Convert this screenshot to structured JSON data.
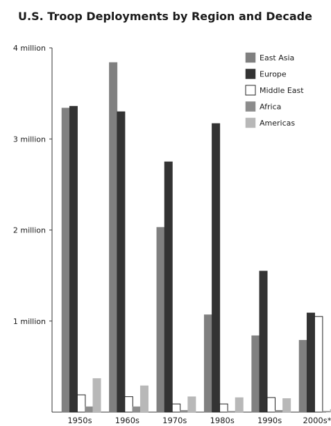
{
  "chart_data": {
    "type": "bar",
    "title": "U.S. Troop Deployments by Region and Decade",
    "xlabel": "",
    "ylabel": "",
    "categories": [
      "1950s",
      "1960s",
      "1970s",
      "1980s",
      "1990s",
      "2000s*"
    ],
    "ylim": [
      0,
      4000000
    ],
    "yticks": [
      {
        "value": 1000000,
        "label": "1 million"
      },
      {
        "value": 2000000,
        "label": "2 million"
      },
      {
        "value": 3000000,
        "label": "3 million"
      },
      {
        "value": 4000000,
        "label": "4 million"
      }
    ],
    "grid": false,
    "legend_position": "top-right",
    "series": [
      {
        "name": "East Asia",
        "color": "#808080",
        "stroke": "#808080",
        "values": [
          3340000,
          3840000,
          2030000,
          1070000,
          840000,
          790000
        ]
      },
      {
        "name": "Europe",
        "color": "#333333",
        "stroke": "#333333",
        "values": [
          3360000,
          3300000,
          2750000,
          3170000,
          1550000,
          1090000
        ]
      },
      {
        "name": "Middle East",
        "color": "#ffffff",
        "stroke": "#222222",
        "values": [
          190000,
          170000,
          90000,
          90000,
          160000,
          1050000
        ]
      },
      {
        "name": "Africa",
        "color": "#8c8c8c",
        "stroke": "#8c8c8c",
        "values": [
          60000,
          60000,
          20000,
          10000,
          20000,
          10000
        ]
      },
      {
        "name": "Americas",
        "color": "#b8b8b8",
        "stroke": "#b8b8b8",
        "values": [
          370000,
          290000,
          170000,
          160000,
          150000,
          30000
        ]
      }
    ]
  }
}
